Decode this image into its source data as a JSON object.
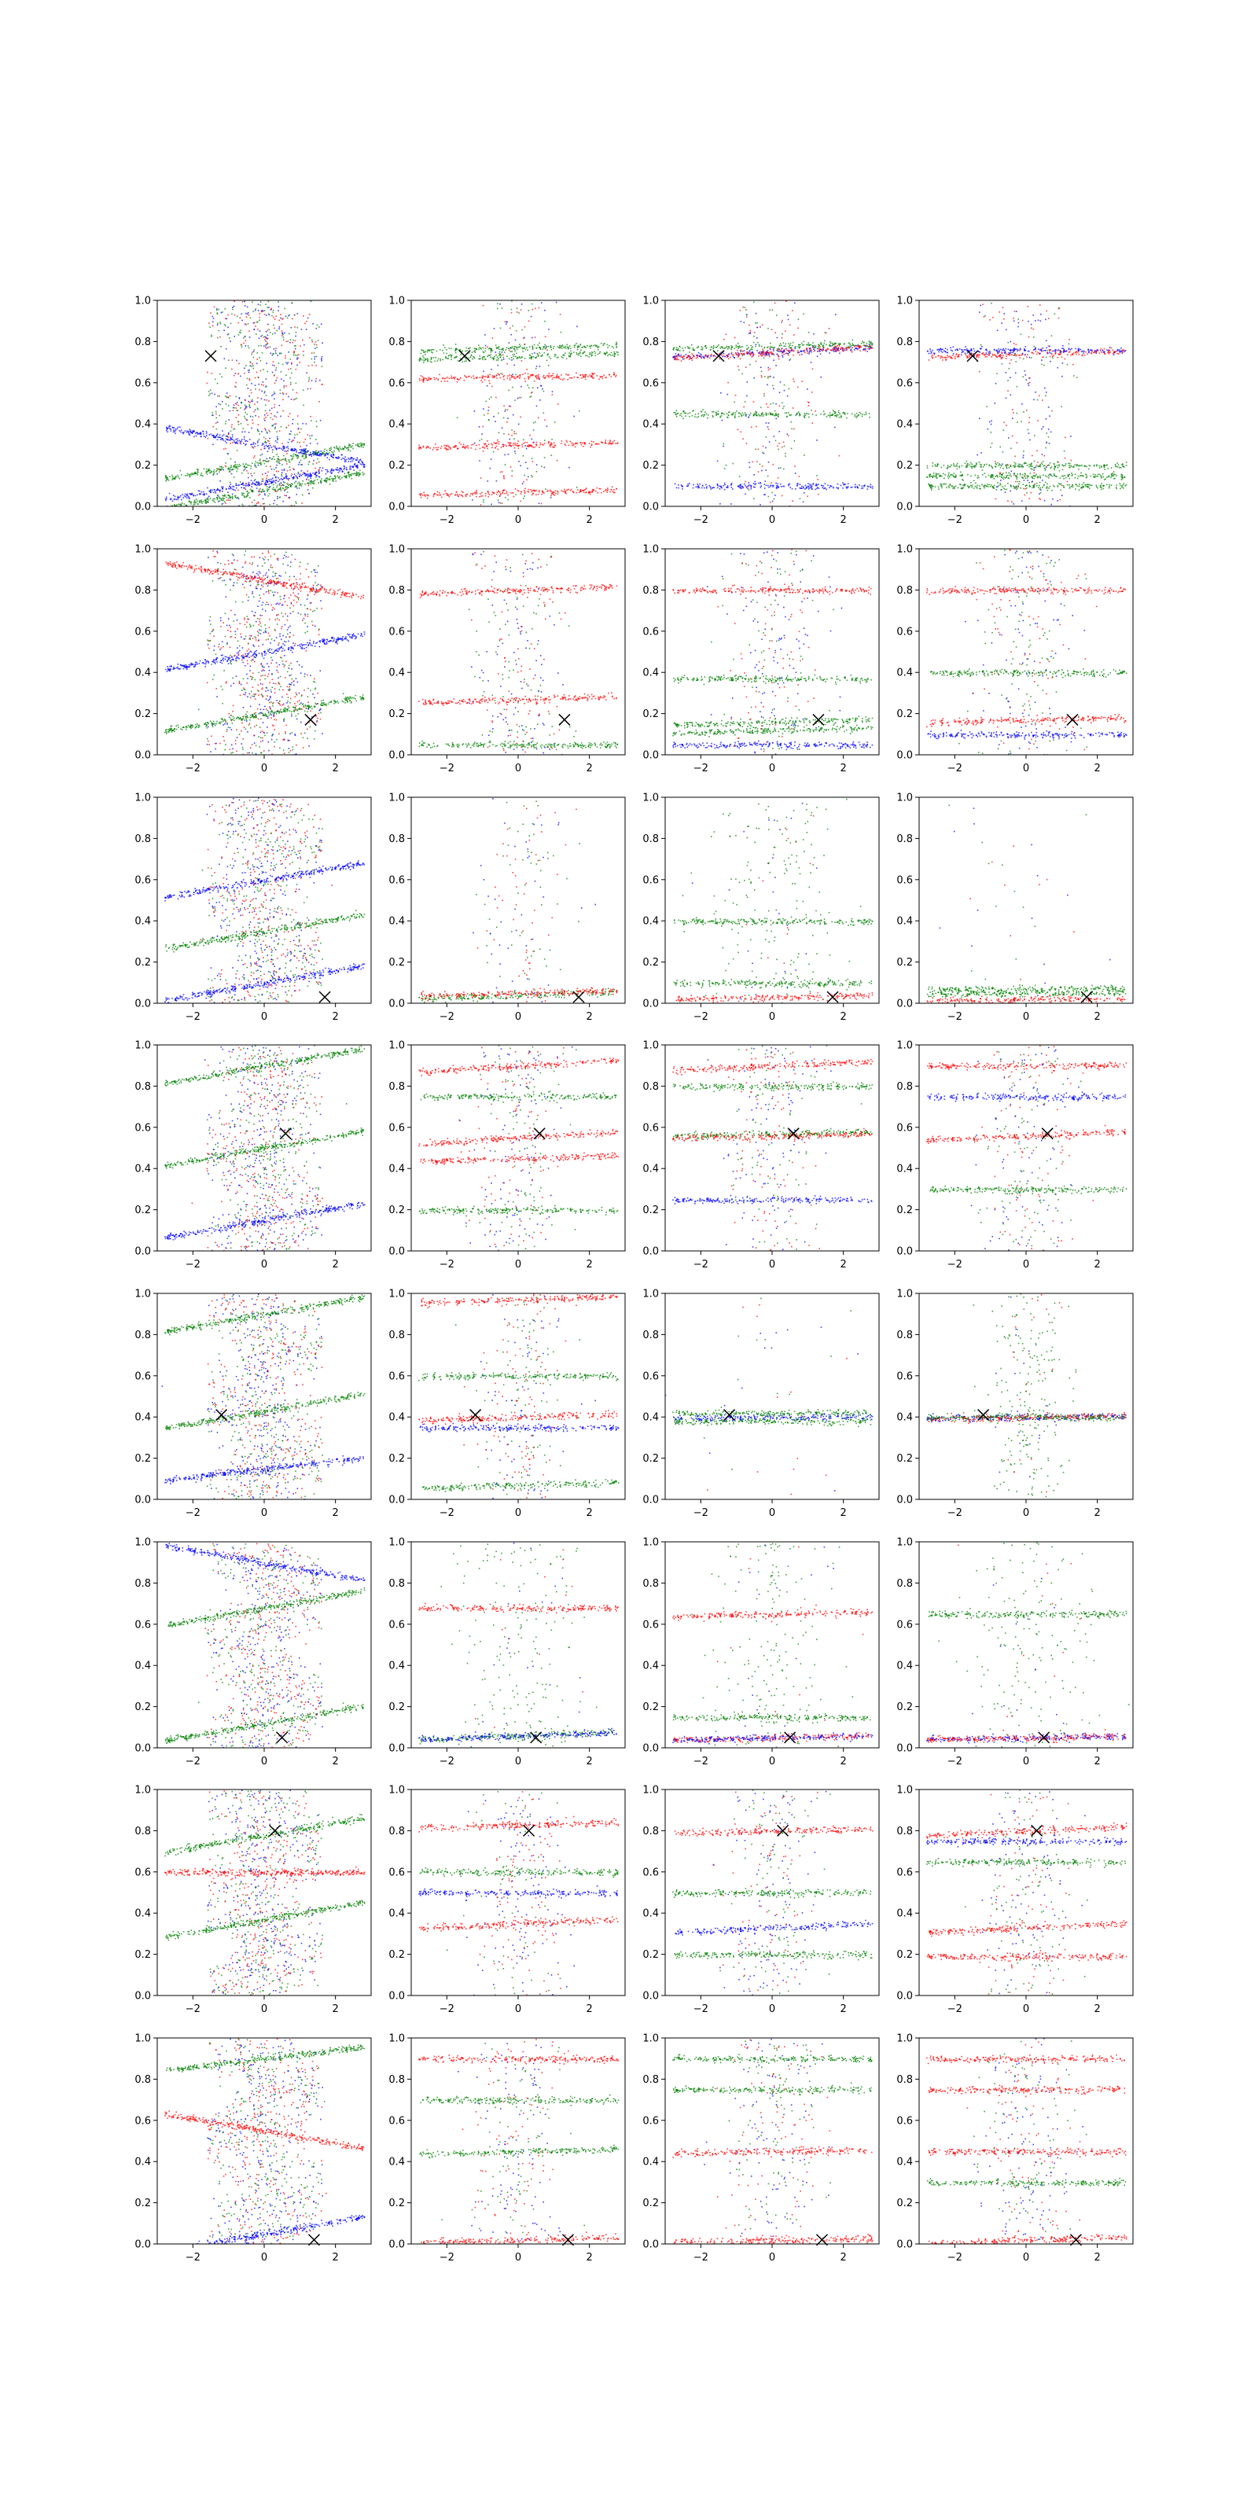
{
  "figure": {
    "layout": {
      "rows": 8,
      "cols": 4
    },
    "point_colors": [
      "#0000ff",
      "#ff0000",
      "#008000"
    ],
    "marker": {
      "symbol": "x",
      "color": "#000000"
    }
  },
  "chart_data": {
    "type": "scatter",
    "title": "",
    "xlabel": "",
    "ylabel": "",
    "xlim": [
      -3,
      3
    ],
    "ylim": [
      0,
      1
    ],
    "x_ticks": [
      -2,
      0,
      2
    ],
    "y_ticks": [
      0.0,
      0.2,
      0.4,
      0.6,
      0.8,
      1.0
    ],
    "x_tick_labels": [
      "−2",
      "0",
      "2"
    ],
    "y_tick_labels": [
      "0.0",
      "0.2",
      "0.4",
      "0.6",
      "0.8",
      "1.0"
    ],
    "grid": false,
    "legend": "none",
    "series_colors": {
      "blue": "#0000ff",
      "red": "#ff0000",
      "green": "#008000"
    },
    "panels": [
      {
        "row": 0,
        "col": 0,
        "marker": [
          -1.5,
          0.73
        ],
        "style": "zigzag",
        "bands": [
          {
            "y": 0.08,
            "slope": 0.03,
            "c": "green"
          },
          {
            "y": 0.12,
            "slope": 0.03,
            "c": "blue"
          },
          {
            "y": 0.22,
            "slope": 0.03,
            "c": "green"
          },
          {
            "y": 0.3,
            "slope": -0.03,
            "c": "blue"
          }
        ]
      },
      {
        "row": 0,
        "col": 1,
        "marker": [
          -1.5,
          0.73
        ],
        "style": "bands",
        "bands": [
          {
            "y": 0.73,
            "slope": 0.005,
            "c": "green"
          },
          {
            "y": 0.77,
            "slope": 0.005,
            "c": "green"
          },
          {
            "y": 0.63,
            "slope": 0.003,
            "c": "red"
          },
          {
            "y": 0.3,
            "slope": 0.005,
            "c": "red"
          },
          {
            "y": 0.07,
            "slope": 0.005,
            "c": "red"
          }
        ]
      },
      {
        "row": 0,
        "col": 2,
        "marker": [
          -1.5,
          0.73
        ],
        "style": "bands",
        "bands": [
          {
            "y": 0.75,
            "slope": 0.008,
            "c": "blue"
          },
          {
            "y": 0.75,
            "slope": 0.01,
            "c": "red"
          },
          {
            "y": 0.78,
            "slope": 0.004,
            "c": "green"
          },
          {
            "y": 0.45,
            "slope": 0.0,
            "c": "green"
          },
          {
            "y": 0.1,
            "slope": 0.0,
            "c": "blue"
          }
        ]
      },
      {
        "row": 0,
        "col": 3,
        "marker": [
          -1.5,
          0.73
        ],
        "style": "bands",
        "bands": [
          {
            "y": 0.74,
            "slope": 0.005,
            "c": "red"
          },
          {
            "y": 0.76,
            "slope": 0.0,
            "c": "blue"
          },
          {
            "y": 0.2,
            "slope": 0.0,
            "c": "green"
          },
          {
            "y": 0.15,
            "slope": 0.0,
            "c": "green"
          },
          {
            "y": 0.1,
            "slope": 0.0,
            "c": "green"
          }
        ]
      },
      {
        "row": 1,
        "col": 0,
        "marker": [
          1.3,
          0.17
        ],
        "style": "zigzag",
        "bands": [
          {
            "y": 0.2,
            "slope": 0.03,
            "c": "green"
          },
          {
            "y": 0.5,
            "slope": 0.03,
            "c": "blue"
          },
          {
            "y": 0.85,
            "slope": -0.03,
            "c": "red"
          }
        ]
      },
      {
        "row": 1,
        "col": 1,
        "marker": [
          1.3,
          0.17
        ],
        "style": "column",
        "bands": [
          {
            "y": 0.8,
            "slope": 0.005,
            "c": "red"
          },
          {
            "y": 0.27,
            "slope": 0.005,
            "c": "red"
          },
          {
            "y": 0.05,
            "slope": 0.0,
            "c": "green"
          }
        ]
      },
      {
        "row": 1,
        "col": 2,
        "marker": [
          1.3,
          0.17
        ],
        "style": "bands",
        "bands": [
          {
            "y": 0.16,
            "slope": 0.005,
            "c": "green"
          },
          {
            "y": 0.12,
            "slope": 0.005,
            "c": "green"
          },
          {
            "y": 0.37,
            "slope": 0.0,
            "c": "green"
          },
          {
            "y": 0.05,
            "slope": 0.0,
            "c": "blue"
          },
          {
            "y": 0.8,
            "slope": 0.0,
            "c": "red"
          }
        ]
      },
      {
        "row": 1,
        "col": 3,
        "marker": [
          1.3,
          0.17
        ],
        "style": "bands",
        "bands": [
          {
            "y": 0.17,
            "slope": 0.004,
            "c": "red"
          },
          {
            "y": 0.4,
            "slope": 0.0,
            "c": "green"
          },
          {
            "y": 0.1,
            "slope": 0.0,
            "c": "blue"
          },
          {
            "y": 0.8,
            "slope": 0.0,
            "c": "red"
          }
        ]
      },
      {
        "row": 2,
        "col": 0,
        "marker": [
          1.7,
          0.03
        ],
        "style": "zigzag",
        "bands": [
          {
            "y": 0.6,
            "slope": 0.03,
            "c": "blue"
          },
          {
            "y": 0.35,
            "slope": 0.03,
            "c": "green"
          },
          {
            "y": 0.1,
            "slope": 0.03,
            "c": "blue"
          }
        ]
      },
      {
        "row": 2,
        "col": 1,
        "marker": [
          1.7,
          0.03
        ],
        "style": "sparse",
        "bands": [
          {
            "y": 0.04,
            "slope": 0.005,
            "c": "green"
          },
          {
            "y": 0.05,
            "slope": 0.004,
            "c": "red"
          }
        ]
      },
      {
        "row": 2,
        "col": 2,
        "marker": [
          1.7,
          0.03
        ],
        "style": "sparse-green",
        "bands": [
          {
            "y": 0.03,
            "slope": 0.003,
            "c": "red"
          },
          {
            "y": 0.1,
            "slope": 0.0,
            "c": "green"
          },
          {
            "y": 0.4,
            "slope": 0.0,
            "c": "green"
          }
        ]
      },
      {
        "row": 2,
        "col": 3,
        "marker": [
          1.7,
          0.03
        ],
        "style": "flat",
        "bands": [
          {
            "y": 0.07,
            "slope": 0.0,
            "c": "green"
          },
          {
            "y": 0.05,
            "slope": 0.0,
            "c": "green"
          },
          {
            "y": 0.02,
            "slope": 0.002,
            "c": "red"
          }
        ]
      },
      {
        "row": 3,
        "col": 0,
        "marker": [
          0.6,
          0.57
        ],
        "style": "zigzag",
        "bands": [
          {
            "y": 0.9,
            "slope": 0.03,
            "c": "green"
          },
          {
            "y": 0.5,
            "slope": 0.03,
            "c": "green"
          },
          {
            "y": 0.15,
            "slope": 0.03,
            "c": "blue"
          }
        ]
      },
      {
        "row": 3,
        "col": 1,
        "marker": [
          0.6,
          0.57
        ],
        "style": "bands",
        "bands": [
          {
            "y": 0.9,
            "slope": 0.01,
            "c": "red"
          },
          {
            "y": 0.55,
            "slope": 0.01,
            "c": "red"
          },
          {
            "y": 0.45,
            "slope": 0.005,
            "c": "red"
          },
          {
            "y": 0.75,
            "slope": 0.0,
            "c": "green"
          },
          {
            "y": 0.2,
            "slope": 0.0,
            "c": "green"
          }
        ]
      },
      {
        "row": 3,
        "col": 2,
        "marker": [
          0.6,
          0.57
        ],
        "style": "bands",
        "bands": [
          {
            "y": 0.57,
            "slope": 0.004,
            "c": "green"
          },
          {
            "y": 0.56,
            "slope": 0.004,
            "c": "red"
          },
          {
            "y": 0.9,
            "slope": 0.008,
            "c": "red"
          },
          {
            "y": 0.8,
            "slope": 0.0,
            "c": "green"
          },
          {
            "y": 0.25,
            "slope": 0.0,
            "c": "blue"
          }
        ]
      },
      {
        "row": 3,
        "col": 3,
        "marker": [
          0.6,
          0.57
        ],
        "style": "bands",
        "bands": [
          {
            "y": 0.56,
            "slope": 0.008,
            "c": "red"
          },
          {
            "y": 0.9,
            "slope": 0.0,
            "c": "red"
          },
          {
            "y": 0.3,
            "slope": 0.0,
            "c": "green"
          },
          {
            "y": 0.75,
            "slope": 0.0,
            "c": "blue"
          }
        ]
      },
      {
        "row": 4,
        "col": 0,
        "marker": [
          -1.2,
          0.41
        ],
        "style": "zigzag",
        "bands": [
          {
            "y": 0.9,
            "slope": 0.03,
            "c": "green"
          },
          {
            "y": 0.43,
            "slope": 0.03,
            "c": "green"
          },
          {
            "y": 0.15,
            "slope": 0.02,
            "c": "blue"
          }
        ]
      },
      {
        "row": 4,
        "col": 1,
        "marker": [
          -1.2,
          0.41
        ],
        "style": "bands",
        "bands": [
          {
            "y": 0.4,
            "slope": 0.005,
            "c": "red"
          },
          {
            "y": 0.97,
            "slope": 0.005,
            "c": "red"
          },
          {
            "y": 0.6,
            "slope": 0.0,
            "c": "green"
          },
          {
            "y": 0.07,
            "slope": 0.005,
            "c": "green"
          },
          {
            "y": 0.35,
            "slope": 0.0,
            "c": "blue"
          }
        ]
      },
      {
        "row": 4,
        "col": 2,
        "marker": [
          -1.2,
          0.41
        ],
        "style": "flat",
        "bands": [
          {
            "y": 0.4,
            "slope": 0.002,
            "c": "blue"
          },
          {
            "y": 0.38,
            "slope": 0.0,
            "c": "green"
          },
          {
            "y": 0.42,
            "slope": 0.0,
            "c": "green"
          }
        ]
      },
      {
        "row": 4,
        "col": 3,
        "marker": [
          -1.2,
          0.41
        ],
        "style": "flat-column",
        "bands": [
          {
            "y": 0.4,
            "slope": 0.002,
            "c": "blue"
          },
          {
            "y": 0.4,
            "slope": 0.003,
            "c": "red"
          },
          {
            "y": 0.4,
            "slope": 0.0,
            "c": "green"
          }
        ]
      },
      {
        "row": 5,
        "col": 0,
        "marker": [
          0.5,
          0.05
        ],
        "style": "zigzag",
        "bands": [
          {
            "y": 0.12,
            "slope": 0.03,
            "c": "green"
          },
          {
            "y": 0.68,
            "slope": 0.03,
            "c": "green"
          },
          {
            "y": 0.9,
            "slope": -0.03,
            "c": "blue"
          }
        ]
      },
      {
        "row": 5,
        "col": 1,
        "marker": [
          0.5,
          0.05
        ],
        "style": "sparse-green",
        "bands": [
          {
            "y": 0.06,
            "slope": 0.006,
            "c": "green"
          },
          {
            "y": 0.06,
            "slope": 0.006,
            "c": "blue"
          },
          {
            "y": 0.68,
            "slope": 0.0,
            "c": "red"
          }
        ]
      },
      {
        "row": 5,
        "col": 2,
        "marker": [
          0.5,
          0.05
        ],
        "style": "sparse-green",
        "bands": [
          {
            "y": 0.05,
            "slope": 0.004,
            "c": "red"
          },
          {
            "y": 0.05,
            "slope": 0.004,
            "c": "blue"
          },
          {
            "y": 0.65,
            "slope": 0.004,
            "c": "red"
          },
          {
            "y": 0.15,
            "slope": 0.0,
            "c": "green"
          }
        ]
      },
      {
        "row": 5,
        "col": 3,
        "marker": [
          0.5,
          0.05
        ],
        "style": "sparse-green",
        "bands": [
          {
            "y": 0.05,
            "slope": 0.003,
            "c": "blue"
          },
          {
            "y": 0.05,
            "slope": 0.003,
            "c": "red"
          },
          {
            "y": 0.65,
            "slope": 0.0,
            "c": "green"
          }
        ]
      },
      {
        "row": 6,
        "col": 0,
        "marker": [
          0.3,
          0.8
        ],
        "style": "zigzag",
        "bands": [
          {
            "y": 0.37,
            "slope": 0.03,
            "c": "green"
          },
          {
            "y": 0.78,
            "slope": 0.03,
            "c": "green"
          },
          {
            "y": 0.6,
            "slope": 0.0,
            "c": "red"
          }
        ]
      },
      {
        "row": 6,
        "col": 1,
        "marker": [
          0.3,
          0.8
        ],
        "style": "bands",
        "bands": [
          {
            "y": 0.35,
            "slope": 0.008,
            "c": "red"
          },
          {
            "y": 0.83,
            "slope": 0.005,
            "c": "red"
          },
          {
            "y": 0.6,
            "slope": 0.0,
            "c": "green"
          },
          {
            "y": 0.5,
            "slope": 0.0,
            "c": "blue"
          }
        ]
      },
      {
        "row": 6,
        "col": 2,
        "marker": [
          0.3,
          0.8
        ],
        "style": "bands",
        "bands": [
          {
            "y": 0.8,
            "slope": 0.004,
            "c": "red"
          },
          {
            "y": 0.33,
            "slope": 0.008,
            "c": "blue"
          },
          {
            "y": 0.2,
            "slope": 0.0,
            "c": "green"
          },
          {
            "y": 0.5,
            "slope": 0.0,
            "c": "green"
          }
        ]
      },
      {
        "row": 6,
        "col": 3,
        "marker": [
          0.3,
          0.8
        ],
        "style": "bands",
        "bands": [
          {
            "y": 0.8,
            "slope": 0.008,
            "c": "red"
          },
          {
            "y": 0.33,
            "slope": 0.008,
            "c": "red"
          },
          {
            "y": 0.19,
            "slope": 0.0,
            "c": "red"
          },
          {
            "y": 0.65,
            "slope": 0.0,
            "c": "green"
          },
          {
            "y": 0.75,
            "slope": 0.0,
            "c": "blue"
          }
        ]
      },
      {
        "row": 7,
        "col": 0,
        "marker": [
          1.4,
          0.02
        ],
        "style": "zigzag",
        "bands": [
          {
            "y": 0.05,
            "slope": 0.03,
            "c": "blue"
          },
          {
            "y": 0.55,
            "slope": -0.03,
            "c": "red"
          },
          {
            "y": 0.9,
            "slope": 0.02,
            "c": "green"
          }
        ]
      },
      {
        "row": 7,
        "col": 1,
        "marker": [
          1.4,
          0.02
        ],
        "style": "bands",
        "bands": [
          {
            "y": 0.45,
            "slope": 0.004,
            "c": "green"
          },
          {
            "y": 0.02,
            "slope": 0.005,
            "c": "red"
          },
          {
            "y": 0.9,
            "slope": 0.0,
            "c": "red"
          },
          {
            "y": 0.7,
            "slope": 0.0,
            "c": "green"
          }
        ]
      },
      {
        "row": 7,
        "col": 2,
        "marker": [
          1.4,
          0.02
        ],
        "style": "bands",
        "bands": [
          {
            "y": 0.45,
            "slope": 0.003,
            "c": "red"
          },
          {
            "y": 0.02,
            "slope": 0.004,
            "c": "red"
          },
          {
            "y": 0.9,
            "slope": 0.0,
            "c": "green"
          },
          {
            "y": 0.75,
            "slope": 0.0,
            "c": "green"
          }
        ]
      },
      {
        "row": 7,
        "col": 3,
        "marker": [
          1.4,
          0.02
        ],
        "style": "bands",
        "bands": [
          {
            "y": 0.02,
            "slope": 0.006,
            "c": "red"
          },
          {
            "y": 0.45,
            "slope": 0.0,
            "c": "red"
          },
          {
            "y": 0.75,
            "slope": 0.0,
            "c": "red"
          },
          {
            "y": 0.9,
            "slope": 0.0,
            "c": "red"
          },
          {
            "y": 0.3,
            "slope": 0.0,
            "c": "green"
          }
        ]
      }
    ]
  }
}
